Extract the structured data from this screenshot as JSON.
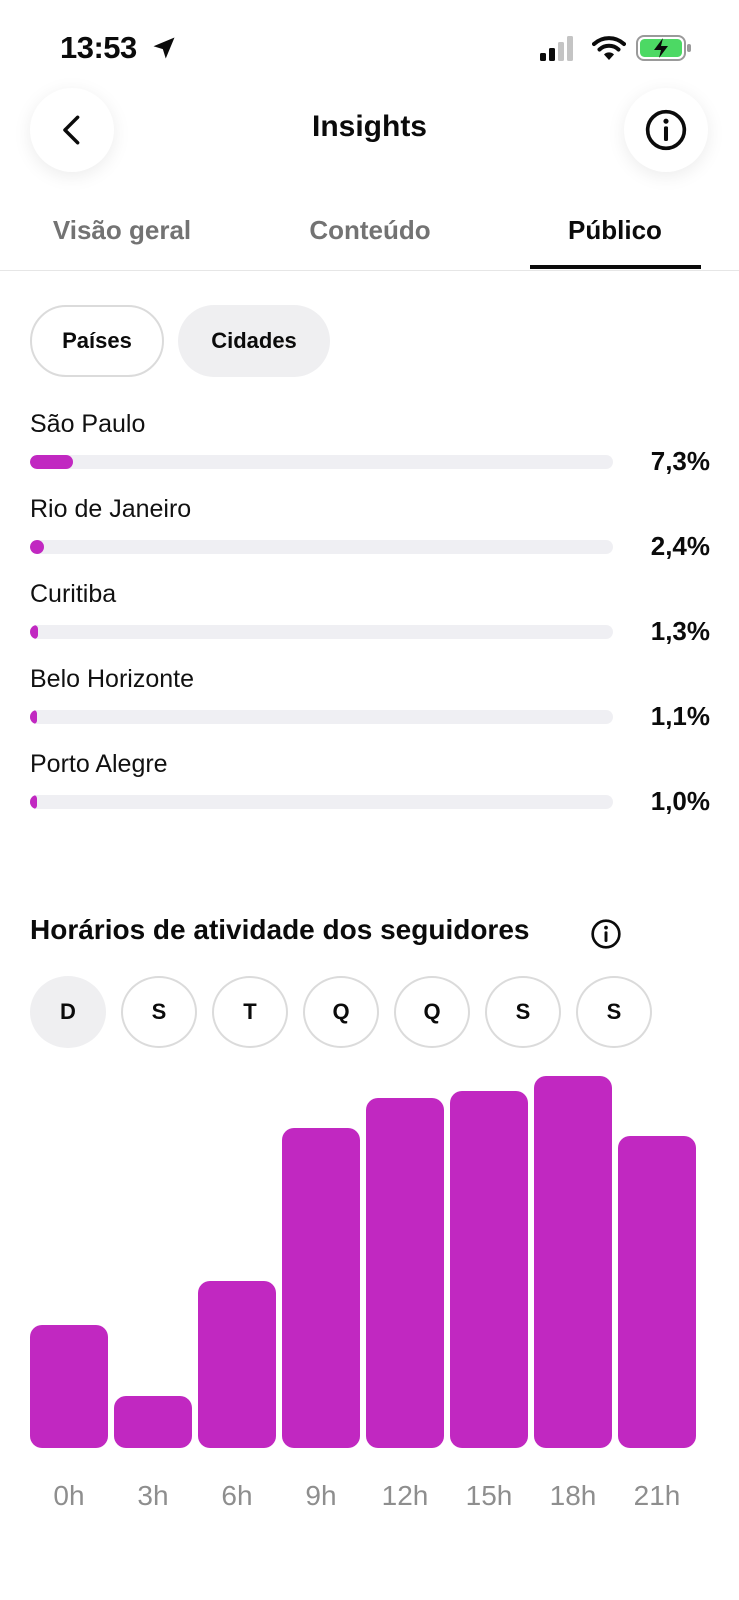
{
  "status": {
    "time": "13:53",
    "icons": [
      "location-arrow-icon",
      "cellular-signal-icon",
      "wifi-icon",
      "battery-charging-icon"
    ]
  },
  "header": {
    "title": "Insights",
    "back_icon": "chevron-left-icon",
    "info_icon": "info-icon"
  },
  "tabs": [
    {
      "label": "Visão geral",
      "active": false
    },
    {
      "label": "Conteúdo",
      "active": false
    },
    {
      "label": "Público",
      "active": true
    }
  ],
  "filters": {
    "paises": "Países",
    "cidades": "Cidades",
    "selected": "Cidades"
  },
  "cities": [
    {
      "name": "São Paulo",
      "percent_label": "7,3%",
      "fill_fraction": 0.073
    },
    {
      "name": "Rio de Janeiro",
      "percent_label": "2,4%",
      "fill_fraction": 0.024
    },
    {
      "name": "Curitiba",
      "percent_label": "1,3%",
      "fill_fraction": 0.013
    },
    {
      "name": "Belo Horizonte",
      "percent_label": "1,1%",
      "fill_fraction": 0.011
    },
    {
      "name": "Porto Alegre",
      "percent_label": "1,0%",
      "fill_fraction": 0.01
    }
  ],
  "activity": {
    "title": "Horários de atividade dos seguidores",
    "days": [
      "D",
      "S",
      "T",
      "Q",
      "Q",
      "S",
      "S"
    ],
    "selected_day_index": 0
  },
  "chart_data": {
    "type": "bar",
    "categories": [
      "0h",
      "3h",
      "6h",
      "9h",
      "12h",
      "15h",
      "18h",
      "21h"
    ],
    "values": [
      33,
      14,
      45,
      86,
      94,
      96,
      100,
      84
    ],
    "ylim": [
      0,
      100
    ],
    "grid": false,
    "color": "#c128c1"
  },
  "colors": {
    "accent": "#c128c1",
    "track": "#efeff3"
  }
}
